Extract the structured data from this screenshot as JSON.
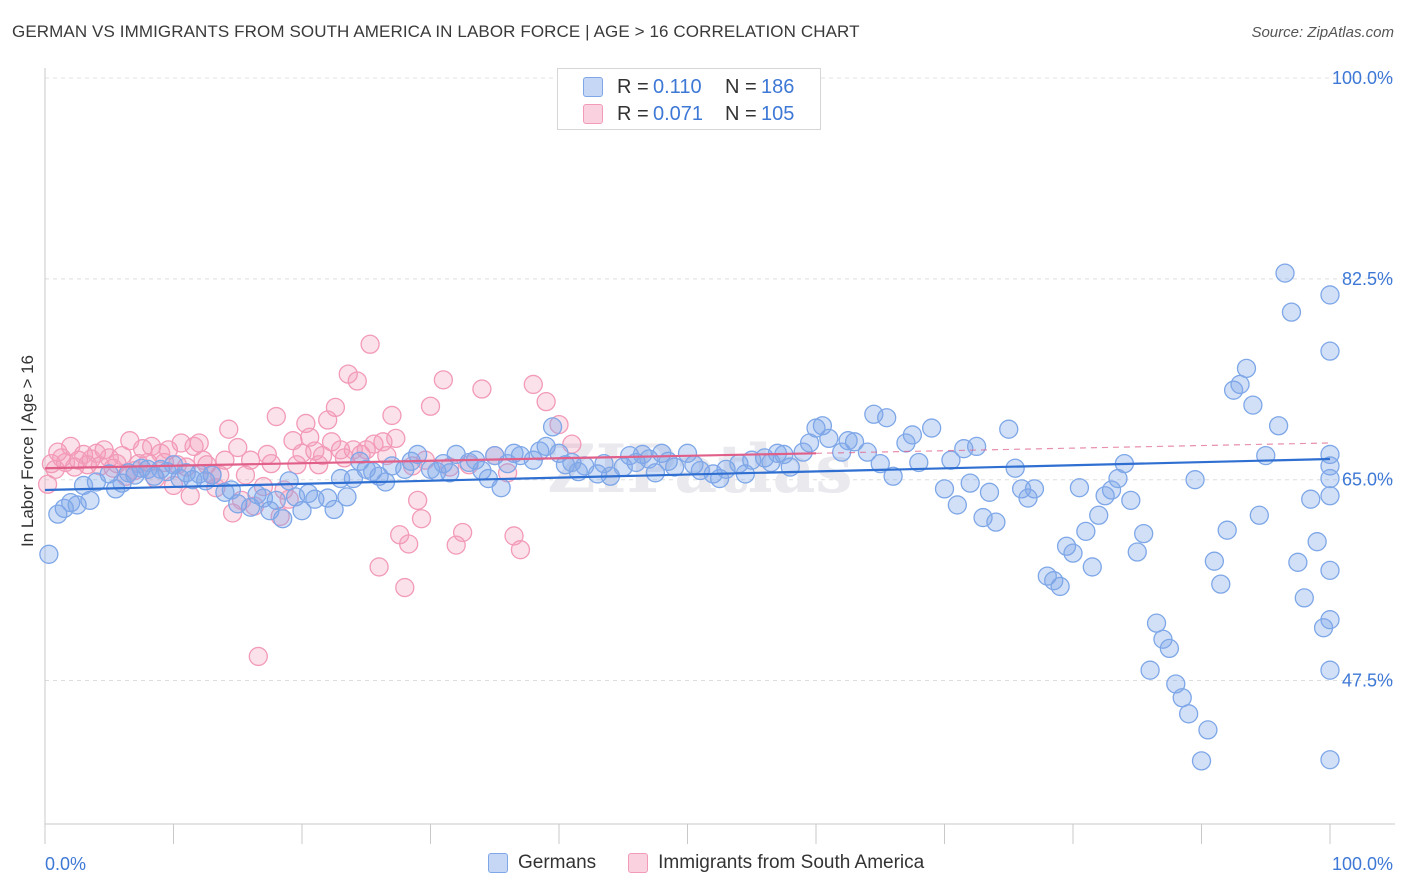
{
  "title": "GERMAN VS IMMIGRANTS FROM SOUTH AMERICA IN LABOR FORCE | AGE > 16 CORRELATION CHART",
  "source": "Source: ZipAtlas.com",
  "watermark": "ZIPatlas",
  "legend": {
    "rows": [
      {
        "r_label": "R =",
        "r_value": "0.110",
        "n_label": "N =",
        "n_value": "186",
        "color": "#7ea7e8"
      },
      {
        "r_label": "R =",
        "r_value": "0.071",
        "n_label": "N =",
        "n_value": "105",
        "color": "#f29ab8"
      }
    ]
  },
  "bottom_legend": [
    {
      "name": "Germans",
      "color": "#7ea7e8"
    },
    {
      "name": "Immigrants from South America",
      "color": "#f29ab8"
    }
  ],
  "chart_data": {
    "type": "scatter",
    "title": "GERMAN VS IMMIGRANTS FROM SOUTH AMERICA IN LABOR FORCE | AGE > 16 CORRELATION CHART",
    "xlabel": "",
    "ylabel": "In Labor Force | Age > 16",
    "xlim": [
      0,
      100
    ],
    "ylim": [
      35,
      100
    ],
    "x_tick_labels": [
      "0.0%",
      "100.0%"
    ],
    "y_ticks": [
      47.5,
      65.0,
      82.5,
      100.0
    ],
    "y_tick_labels": [
      "47.5%",
      "65.0%",
      "82.5%",
      "100.0%"
    ],
    "grid": "horizontal dashed",
    "legend_position": "top-center",
    "series": [
      {
        "name": "Germans",
        "color": "#7ea7e8",
        "line_color": "#2f6fd1",
        "trend": {
          "x": [
            0,
            100
          ],
          "y": [
            64.1,
            66.8
          ]
        },
        "points": [
          [
            0.3,
            58.5
          ],
          [
            1,
            62
          ],
          [
            1.5,
            62.5
          ],
          [
            2,
            63
          ],
          [
            2.5,
            62.8
          ],
          [
            3,
            64.5
          ],
          [
            3.5,
            63.2
          ],
          [
            4,
            64.8
          ],
          [
            5,
            65.5
          ],
          [
            5.5,
            64.2
          ],
          [
            6,
            64.7
          ],
          [
            6.5,
            65.6
          ],
          [
            7,
            65.4
          ],
          [
            7.5,
            66
          ],
          [
            8,
            65.9
          ],
          [
            8.5,
            65.3
          ],
          [
            9,
            65.9
          ],
          [
            9.5,
            65.7
          ],
          [
            10,
            66.3
          ],
          [
            10.5,
            65.1
          ],
          [
            11,
            65.6
          ],
          [
            11.5,
            65
          ],
          [
            12,
            65.5
          ],
          [
            12.5,
            64.9
          ],
          [
            13,
            65.4
          ],
          [
            14,
            63.9
          ],
          [
            14.5,
            64.1
          ],
          [
            15,
            62.9
          ],
          [
            16,
            62.6
          ],
          [
            16.5,
            63.7
          ],
          [
            17,
            63.4
          ],
          [
            17.5,
            62.3
          ],
          [
            18,
            63.2
          ],
          [
            18.5,
            61.6
          ],
          [
            19,
            64.9
          ],
          [
            19.5,
            63.5
          ],
          [
            20,
            62.3
          ],
          [
            20.5,
            63.8
          ],
          [
            21,
            63.3
          ],
          [
            22,
            63.4
          ],
          [
            22.5,
            62.4
          ],
          [
            23,
            65.1
          ],
          [
            23.5,
            63.5
          ],
          [
            24,
            65.1
          ],
          [
            24.5,
            66.6
          ],
          [
            25,
            65.9
          ],
          [
            25.5,
            65.7
          ],
          [
            26,
            65.3
          ],
          [
            26.5,
            64.8
          ],
          [
            27,
            66.2
          ],
          [
            28,
            65.9
          ],
          [
            28.5,
            66.6
          ],
          [
            29,
            67.2
          ],
          [
            30,
            65.9
          ],
          [
            30.5,
            65.7
          ],
          [
            31,
            66.4
          ],
          [
            31.5,
            65.6
          ],
          [
            32,
            67.2
          ],
          [
            33,
            66.5
          ],
          [
            33.5,
            66.7
          ],
          [
            34,
            65.8
          ],
          [
            34.5,
            65.1
          ],
          [
            35,
            67.1
          ],
          [
            35.5,
            64.3
          ],
          [
            36,
            66.4
          ],
          [
            36.5,
            67.3
          ],
          [
            37,
            67.1
          ],
          [
            38,
            66.7
          ],
          [
            38.5,
            67.5
          ],
          [
            39,
            67.9
          ],
          [
            39.5,
            69.6
          ],
          [
            40,
            67.3
          ],
          [
            40.5,
            66.3
          ],
          [
            41,
            66.5
          ],
          [
            41.5,
            65.7
          ],
          [
            42,
            66.2
          ],
          [
            43,
            65.5
          ],
          [
            43.5,
            66.4
          ],
          [
            44,
            65.3
          ],
          [
            45,
            66.1
          ],
          [
            45.5,
            67.1
          ],
          [
            46,
            66.5
          ],
          [
            46.5,
            67.2
          ],
          [
            47,
            66.8
          ],
          [
            47.5,
            65.6
          ],
          [
            48,
            67.3
          ],
          [
            48.5,
            66.6
          ],
          [
            49,
            66.1
          ],
          [
            50,
            67.3
          ],
          [
            50.5,
            66.3
          ],
          [
            51,
            65.8
          ],
          [
            52,
            65.5
          ],
          [
            52.5,
            65.1
          ],
          [
            53,
            65.9
          ],
          [
            54,
            66.4
          ],
          [
            54.5,
            65.5
          ],
          [
            55,
            66.7
          ],
          [
            56,
            66.9
          ],
          [
            56.5,
            66.5
          ],
          [
            57,
            67.3
          ],
          [
            57.5,
            67.2
          ],
          [
            58,
            66.1
          ],
          [
            59,
            67.4
          ],
          [
            59.5,
            68.2
          ],
          [
            60,
            69.5
          ],
          [
            60.5,
            69.7
          ],
          [
            61,
            68.6
          ],
          [
            62,
            67.4
          ],
          [
            62.5,
            68.4
          ],
          [
            63,
            68.3
          ],
          [
            64,
            67.4
          ],
          [
            64.5,
            70.7
          ],
          [
            65,
            66.4
          ],
          [
            65.5,
            70.4
          ],
          [
            66,
            65.3
          ],
          [
            67,
            68.2
          ],
          [
            67.5,
            68.9
          ],
          [
            68,
            66.5
          ],
          [
            69,
            69.5
          ],
          [
            70,
            64.2
          ],
          [
            70.5,
            66.7
          ],
          [
            71,
            62.8
          ],
          [
            71.5,
            67.7
          ],
          [
            72,
            64.7
          ],
          [
            72.5,
            67.9
          ],
          [
            73,
            61.7
          ],
          [
            73.5,
            63.9
          ],
          [
            74,
            61.3
          ],
          [
            75,
            69.4
          ],
          [
            75.5,
            66
          ],
          [
            76,
            64.2
          ],
          [
            76.5,
            63.4
          ],
          [
            77,
            64.2
          ],
          [
            78,
            56.6
          ],
          [
            78.5,
            56.2
          ],
          [
            79,
            55.7
          ],
          [
            79.5,
            59.2
          ],
          [
            80,
            58.6
          ],
          [
            80.5,
            64.3
          ],
          [
            81,
            60.5
          ],
          [
            81.5,
            57.4
          ],
          [
            82,
            61.9
          ],
          [
            82.5,
            63.6
          ],
          [
            83,
            64.1
          ],
          [
            83.5,
            65.1
          ],
          [
            84,
            66.4
          ],
          [
            84.5,
            63.2
          ],
          [
            85,
            58.7
          ],
          [
            85.5,
            60.3
          ],
          [
            86,
            48.4
          ],
          [
            86.5,
            52.5
          ],
          [
            87,
            51.1
          ],
          [
            87.5,
            50.3
          ],
          [
            88,
            47.2
          ],
          [
            88.5,
            46
          ],
          [
            89,
            44.6
          ],
          [
            89.5,
            65
          ],
          [
            90,
            40.5
          ],
          [
            90.5,
            43.2
          ],
          [
            91,
            57.9
          ],
          [
            91.5,
            55.9
          ],
          [
            92,
            60.6
          ],
          [
            92.5,
            72.8
          ],
          [
            93,
            73.3
          ],
          [
            93.5,
            74.7
          ],
          [
            94,
            71.5
          ],
          [
            94.5,
            61.9
          ],
          [
            95,
            67.1
          ],
          [
            96,
            69.7
          ],
          [
            96.5,
            83
          ],
          [
            97,
            79.6
          ],
          [
            97.5,
            57.8
          ],
          [
            98,
            54.7
          ],
          [
            98.5,
            63.3
          ],
          [
            99,
            59.6
          ],
          [
            99.5,
            52.1
          ],
          [
            100,
            40.6
          ],
          [
            100,
            76.2
          ],
          [
            100,
            81.1
          ],
          [
            100,
            67.2
          ],
          [
            100,
            63.6
          ],
          [
            100,
            57.1
          ],
          [
            100,
            48.4
          ],
          [
            100,
            52.8
          ],
          [
            100,
            66.2
          ],
          [
            100,
            65.1
          ]
        ]
      },
      {
        "name": "Immigrants from South America",
        "color": "#f29ab8",
        "line_color": "#e0608a",
        "trend": {
          "x": [
            0,
            60
          ],
          "y": [
            66.0,
            67.3
          ]
        },
        "trend_dashed": {
          "x": [
            60,
            100
          ],
          "y": [
            67.3,
            68.2
          ]
        },
        "points": [
          [
            0.2,
            64.6
          ],
          [
            0.5,
            66.4
          ],
          [
            0.8,
            65.9
          ],
          [
            1,
            67.4
          ],
          [
            1.3,
            66.9
          ],
          [
            1.6,
            66.5
          ],
          [
            2,
            67.9
          ],
          [
            2.3,
            66.1
          ],
          [
            2.6,
            66.7
          ],
          [
            3,
            67.2
          ],
          [
            3.3,
            66.3
          ],
          [
            3.6,
            66.8
          ],
          [
            4,
            67.3
          ],
          [
            4.3,
            66.2
          ],
          [
            4.6,
            67.6
          ],
          [
            5,
            66.9
          ],
          [
            5.3,
            66
          ],
          [
            5.6,
            66.4
          ],
          [
            6,
            67.1
          ],
          [
            6.3,
            65.3
          ],
          [
            6.6,
            68.4
          ],
          [
            7,
            65.8
          ],
          [
            7.3,
            66.4
          ],
          [
            7.6,
            67.7
          ],
          [
            8,
            66.5
          ],
          [
            8.3,
            67.9
          ],
          [
            8.6,
            65.1
          ],
          [
            9,
            67.3
          ],
          [
            9.3,
            66.5
          ],
          [
            9.6,
            67.6
          ],
          [
            10,
            64.5
          ],
          [
            10.3,
            66.3
          ],
          [
            10.6,
            68.2
          ],
          [
            11,
            66.1
          ],
          [
            11.3,
            63.6
          ],
          [
            11.6,
            67.9
          ],
          [
            12,
            68.2
          ],
          [
            12.3,
            66.7
          ],
          [
            12.6,
            66.3
          ],
          [
            13,
            65.5
          ],
          [
            13.3,
            64.3
          ],
          [
            13.6,
            65.4
          ],
          [
            14,
            66.7
          ],
          [
            14.3,
            69.4
          ],
          [
            14.6,
            62.1
          ],
          [
            15,
            67.8
          ],
          [
            15.3,
            63.2
          ],
          [
            15.6,
            65.4
          ],
          [
            16,
            66.7
          ],
          [
            16.3,
            62.7
          ],
          [
            16.6,
            49.6
          ],
          [
            17,
            64.4
          ],
          [
            17.3,
            67.2
          ],
          [
            17.6,
            66.4
          ],
          [
            18,
            70.5
          ],
          [
            18.3,
            61.8
          ],
          [
            18.6,
            64.1
          ],
          [
            19,
            63.3
          ],
          [
            19.3,
            68.4
          ],
          [
            19.6,
            66.3
          ],
          [
            20,
            67.3
          ],
          [
            20.3,
            69.9
          ],
          [
            20.6,
            68.7
          ],
          [
            21,
            67.5
          ],
          [
            21.3,
            66.3
          ],
          [
            21.6,
            67.1
          ],
          [
            22,
            70.2
          ],
          [
            22.3,
            68.3
          ],
          [
            22.6,
            71.3
          ],
          [
            23,
            67.6
          ],
          [
            23.3,
            66.9
          ],
          [
            23.6,
            74.2
          ],
          [
            24,
            67.6
          ],
          [
            24.3,
            73.6
          ],
          [
            24.6,
            67.2
          ],
          [
            25,
            67.6
          ],
          [
            25.3,
            76.8
          ],
          [
            25.6,
            68.1
          ],
          [
            26,
            57.4
          ],
          [
            26.3,
            68.3
          ],
          [
            26.6,
            67.1
          ],
          [
            27,
            70.6
          ],
          [
            27.3,
            68.6
          ],
          [
            27.6,
            60.2
          ],
          [
            28,
            55.6
          ],
          [
            28.3,
            59.4
          ],
          [
            28.6,
            66.2
          ],
          [
            29,
            63.2
          ],
          [
            29.3,
            61.6
          ],
          [
            29.6,
            66.7
          ],
          [
            30,
            71.4
          ],
          [
            31,
            73.7
          ],
          [
            31.5,
            66.1
          ],
          [
            32,
            59.3
          ],
          [
            32.5,
            60.4
          ],
          [
            33,
            66.3
          ],
          [
            34,
            72.9
          ],
          [
            35,
            67.1
          ],
          [
            36,
            65.6
          ],
          [
            36.5,
            60.1
          ],
          [
            37,
            58.9
          ],
          [
            38,
            73.3
          ],
          [
            39,
            71.8
          ],
          [
            40,
            69.8
          ],
          [
            41,
            68.1
          ]
        ]
      }
    ]
  }
}
